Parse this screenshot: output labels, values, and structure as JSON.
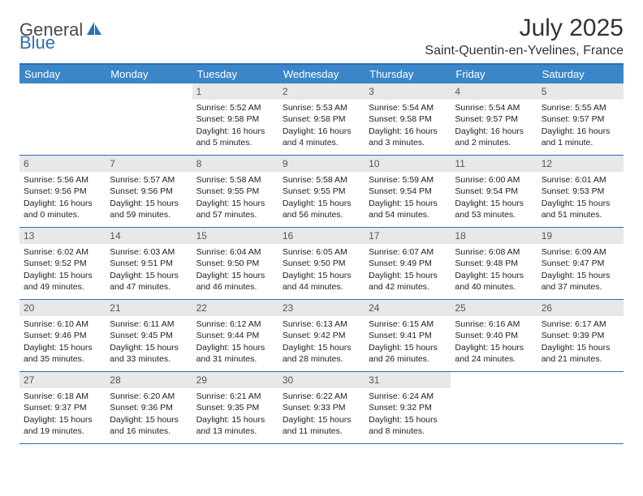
{
  "logo": {
    "text1": "General",
    "text2": "Blue"
  },
  "title": "July 2025",
  "location": "Saint-Quentin-en-Yvelines, France",
  "colors": {
    "header_bg": "#3b86c8",
    "border": "#2a6fb5",
    "daynum_bg": "#e8e8e8",
    "logo_blue": "#2a6fb5",
    "logo_gray": "#4a4a4a"
  },
  "weekdays": [
    "Sunday",
    "Monday",
    "Tuesday",
    "Wednesday",
    "Thursday",
    "Friday",
    "Saturday"
  ],
  "weeks": [
    [
      {
        "empty": true
      },
      {
        "empty": true
      },
      {
        "day": "1",
        "sunrise": "5:52 AM",
        "sunset": "9:58 PM",
        "daylight": "16 hours and 5 minutes."
      },
      {
        "day": "2",
        "sunrise": "5:53 AM",
        "sunset": "9:58 PM",
        "daylight": "16 hours and 4 minutes."
      },
      {
        "day": "3",
        "sunrise": "5:54 AM",
        "sunset": "9:58 PM",
        "daylight": "16 hours and 3 minutes."
      },
      {
        "day": "4",
        "sunrise": "5:54 AM",
        "sunset": "9:57 PM",
        "daylight": "16 hours and 2 minutes."
      },
      {
        "day": "5",
        "sunrise": "5:55 AM",
        "sunset": "9:57 PM",
        "daylight": "16 hours and 1 minute."
      }
    ],
    [
      {
        "day": "6",
        "sunrise": "5:56 AM",
        "sunset": "9:56 PM",
        "daylight": "16 hours and 0 minutes."
      },
      {
        "day": "7",
        "sunrise": "5:57 AM",
        "sunset": "9:56 PM",
        "daylight": "15 hours and 59 minutes."
      },
      {
        "day": "8",
        "sunrise": "5:58 AM",
        "sunset": "9:55 PM",
        "daylight": "15 hours and 57 minutes."
      },
      {
        "day": "9",
        "sunrise": "5:58 AM",
        "sunset": "9:55 PM",
        "daylight": "15 hours and 56 minutes."
      },
      {
        "day": "10",
        "sunrise": "5:59 AM",
        "sunset": "9:54 PM",
        "daylight": "15 hours and 54 minutes."
      },
      {
        "day": "11",
        "sunrise": "6:00 AM",
        "sunset": "9:54 PM",
        "daylight": "15 hours and 53 minutes."
      },
      {
        "day": "12",
        "sunrise": "6:01 AM",
        "sunset": "9:53 PM",
        "daylight": "15 hours and 51 minutes."
      }
    ],
    [
      {
        "day": "13",
        "sunrise": "6:02 AM",
        "sunset": "9:52 PM",
        "daylight": "15 hours and 49 minutes."
      },
      {
        "day": "14",
        "sunrise": "6:03 AM",
        "sunset": "9:51 PM",
        "daylight": "15 hours and 47 minutes."
      },
      {
        "day": "15",
        "sunrise": "6:04 AM",
        "sunset": "9:50 PM",
        "daylight": "15 hours and 46 minutes."
      },
      {
        "day": "16",
        "sunrise": "6:05 AM",
        "sunset": "9:50 PM",
        "daylight": "15 hours and 44 minutes."
      },
      {
        "day": "17",
        "sunrise": "6:07 AM",
        "sunset": "9:49 PM",
        "daylight": "15 hours and 42 minutes."
      },
      {
        "day": "18",
        "sunrise": "6:08 AM",
        "sunset": "9:48 PM",
        "daylight": "15 hours and 40 minutes."
      },
      {
        "day": "19",
        "sunrise": "6:09 AM",
        "sunset": "9:47 PM",
        "daylight": "15 hours and 37 minutes."
      }
    ],
    [
      {
        "day": "20",
        "sunrise": "6:10 AM",
        "sunset": "9:46 PM",
        "daylight": "15 hours and 35 minutes."
      },
      {
        "day": "21",
        "sunrise": "6:11 AM",
        "sunset": "9:45 PM",
        "daylight": "15 hours and 33 minutes."
      },
      {
        "day": "22",
        "sunrise": "6:12 AM",
        "sunset": "9:44 PM",
        "daylight": "15 hours and 31 minutes."
      },
      {
        "day": "23",
        "sunrise": "6:13 AM",
        "sunset": "9:42 PM",
        "daylight": "15 hours and 28 minutes."
      },
      {
        "day": "24",
        "sunrise": "6:15 AM",
        "sunset": "9:41 PM",
        "daylight": "15 hours and 26 minutes."
      },
      {
        "day": "25",
        "sunrise": "6:16 AM",
        "sunset": "9:40 PM",
        "daylight": "15 hours and 24 minutes."
      },
      {
        "day": "26",
        "sunrise": "6:17 AM",
        "sunset": "9:39 PM",
        "daylight": "15 hours and 21 minutes."
      }
    ],
    [
      {
        "day": "27",
        "sunrise": "6:18 AM",
        "sunset": "9:37 PM",
        "daylight": "15 hours and 19 minutes."
      },
      {
        "day": "28",
        "sunrise": "6:20 AM",
        "sunset": "9:36 PM",
        "daylight": "15 hours and 16 minutes."
      },
      {
        "day": "29",
        "sunrise": "6:21 AM",
        "sunset": "9:35 PM",
        "daylight": "15 hours and 13 minutes."
      },
      {
        "day": "30",
        "sunrise": "6:22 AM",
        "sunset": "9:33 PM",
        "daylight": "15 hours and 11 minutes."
      },
      {
        "day": "31",
        "sunrise": "6:24 AM",
        "sunset": "9:32 PM",
        "daylight": "15 hours and 8 minutes."
      },
      {
        "empty": true
      },
      {
        "empty": true
      }
    ]
  ],
  "labels": {
    "sunrise": "Sunrise:",
    "sunset": "Sunset:",
    "daylight": "Daylight:"
  }
}
